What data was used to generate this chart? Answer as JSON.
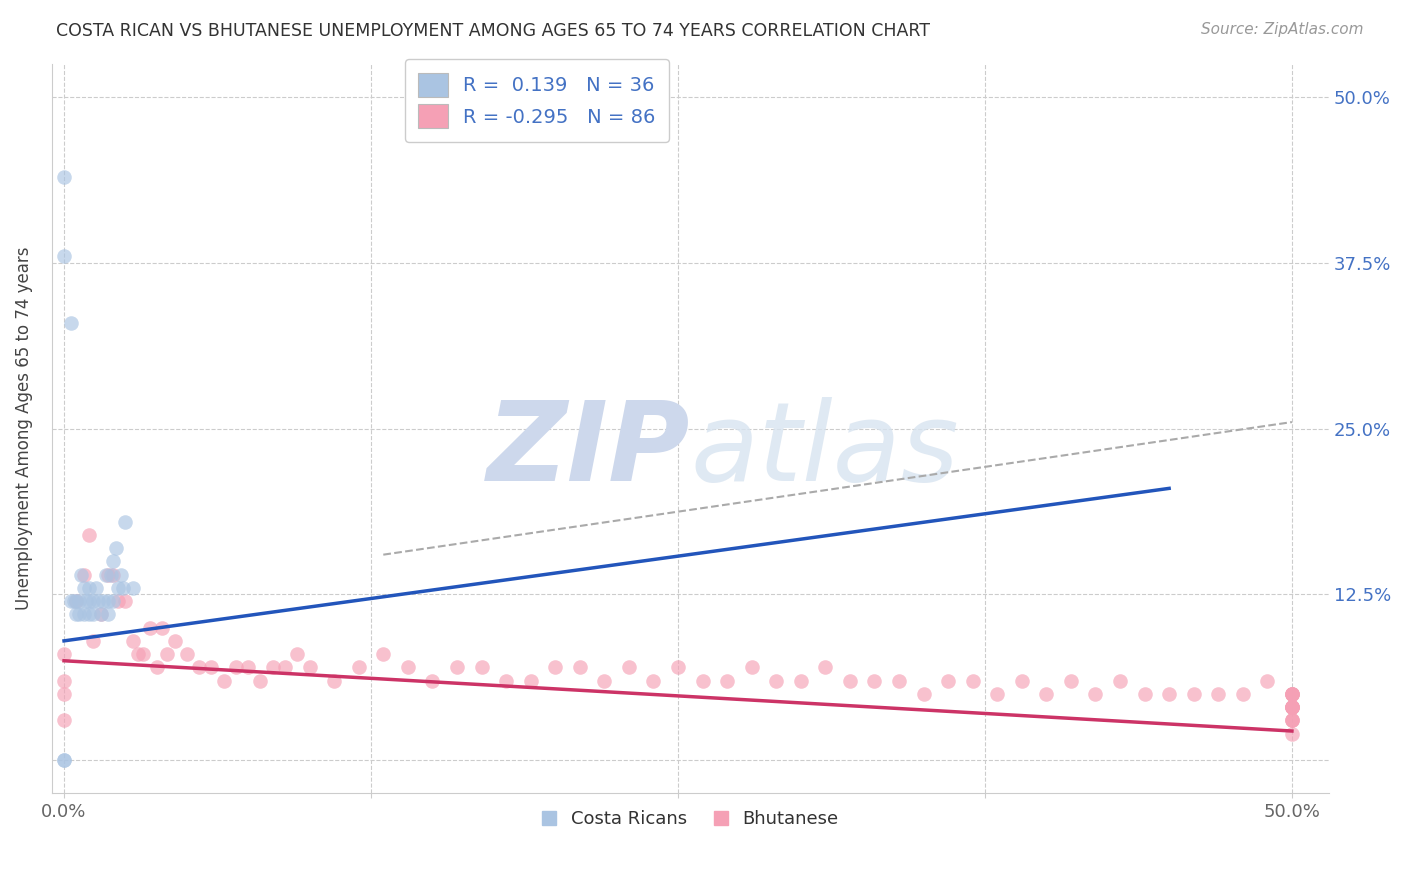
{
  "title": "COSTA RICAN VS BHUTANESE UNEMPLOYMENT AMONG AGES 65 TO 74 YEARS CORRELATION CHART",
  "source": "Source: ZipAtlas.com",
  "ylabel": "Unemployment Among Ages 65 to 74 years",
  "xlim": [
    -0.005,
    0.515
  ],
  "ylim": [
    -0.025,
    0.525
  ],
  "xticks": [
    0.0,
    0.125,
    0.25,
    0.375,
    0.5
  ],
  "xticklabels": [
    "0.0%",
    "",
    "",
    "",
    "50.0%"
  ],
  "yticks": [
    0.0,
    0.125,
    0.25,
    0.375,
    0.5
  ],
  "yticklabels": [
    "",
    "12.5%",
    "25.0%",
    "37.5%",
    "50.0%"
  ],
  "costa_rican_R": 0.139,
  "costa_rican_N": 36,
  "bhutanese_R": -0.295,
  "bhutanese_N": 86,
  "costa_rican_color": "#aac4e2",
  "bhutanese_color": "#f5a0b5",
  "costa_rican_line_color": "#2255bb",
  "bhutanese_line_color": "#cc3366",
  "background_color": "#ffffff",
  "grid_color": "#cccccc",
  "watermark_color": "#cdd8ec",
  "tick_color": "#4472c4",
  "xtick_color": "#666666",
  "costa_rican_x": [
    0.0,
    0.0,
    0.0,
    0.0,
    0.003,
    0.003,
    0.004,
    0.005,
    0.005,
    0.006,
    0.006,
    0.007,
    0.008,
    0.008,
    0.009,
    0.01,
    0.01,
    0.01,
    0.012,
    0.012,
    0.013,
    0.014,
    0.015,
    0.016,
    0.017,
    0.018,
    0.018,
    0.019,
    0.02,
    0.02,
    0.021,
    0.022,
    0.023,
    0.024,
    0.025,
    0.028
  ],
  "costa_rican_y": [
    0.44,
    0.38,
    0.0,
    0.0,
    0.33,
    0.12,
    0.12,
    0.12,
    0.11,
    0.12,
    0.11,
    0.14,
    0.13,
    0.11,
    0.12,
    0.12,
    0.11,
    0.13,
    0.12,
    0.11,
    0.13,
    0.12,
    0.11,
    0.12,
    0.14,
    0.12,
    0.11,
    0.14,
    0.15,
    0.12,
    0.16,
    0.13,
    0.14,
    0.13,
    0.18,
    0.13
  ],
  "bhutanese_x": [
    0.0,
    0.0,
    0.0,
    0.0,
    0.005,
    0.008,
    0.01,
    0.012,
    0.015,
    0.018,
    0.02,
    0.022,
    0.025,
    0.028,
    0.03,
    0.032,
    0.035,
    0.038,
    0.04,
    0.042,
    0.045,
    0.05,
    0.055,
    0.06,
    0.065,
    0.07,
    0.075,
    0.08,
    0.085,
    0.09,
    0.095,
    0.1,
    0.11,
    0.12,
    0.13,
    0.14,
    0.15,
    0.16,
    0.17,
    0.18,
    0.19,
    0.2,
    0.21,
    0.22,
    0.23,
    0.24,
    0.25,
    0.26,
    0.27,
    0.28,
    0.29,
    0.3,
    0.31,
    0.32,
    0.33,
    0.34,
    0.35,
    0.36,
    0.37,
    0.38,
    0.39,
    0.4,
    0.41,
    0.42,
    0.43,
    0.44,
    0.45,
    0.46,
    0.47,
    0.48,
    0.49,
    0.5,
    0.5,
    0.5,
    0.5,
    0.5,
    0.5,
    0.5,
    0.5,
    0.5,
    0.5,
    0.5,
    0.5,
    0.5,
    0.5,
    0.5
  ],
  "bhutanese_y": [
    0.08,
    0.06,
    0.05,
    0.03,
    0.12,
    0.14,
    0.17,
    0.09,
    0.11,
    0.14,
    0.14,
    0.12,
    0.12,
    0.09,
    0.08,
    0.08,
    0.1,
    0.07,
    0.1,
    0.08,
    0.09,
    0.08,
    0.07,
    0.07,
    0.06,
    0.07,
    0.07,
    0.06,
    0.07,
    0.07,
    0.08,
    0.07,
    0.06,
    0.07,
    0.08,
    0.07,
    0.06,
    0.07,
    0.07,
    0.06,
    0.06,
    0.07,
    0.07,
    0.06,
    0.07,
    0.06,
    0.07,
    0.06,
    0.06,
    0.07,
    0.06,
    0.06,
    0.07,
    0.06,
    0.06,
    0.06,
    0.05,
    0.06,
    0.06,
    0.05,
    0.06,
    0.05,
    0.06,
    0.05,
    0.06,
    0.05,
    0.05,
    0.05,
    0.05,
    0.05,
    0.06,
    0.04,
    0.05,
    0.05,
    0.04,
    0.05,
    0.04,
    0.05,
    0.04,
    0.03,
    0.05,
    0.04,
    0.03,
    0.04,
    0.03,
    0.02
  ],
  "cr_line_x0": 0.0,
  "cr_line_y0": 0.09,
  "cr_line_x1": 0.45,
  "cr_line_y1": 0.205,
  "bh_line_x0": 0.0,
  "bh_line_y0": 0.075,
  "bh_line_x1": 0.5,
  "bh_line_y1": 0.022,
  "dash_line_x0": 0.13,
  "dash_line_y0": 0.155,
  "dash_line_x1": 0.5,
  "dash_line_y1": 0.255
}
